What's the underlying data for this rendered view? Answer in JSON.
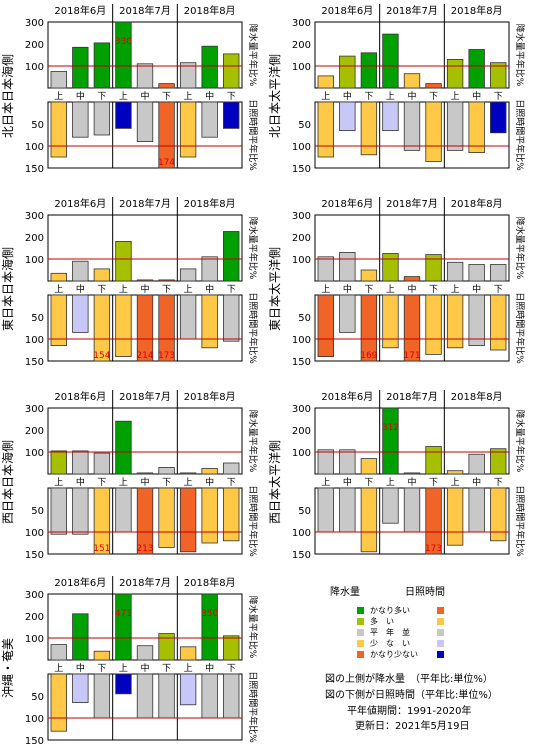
{
  "months": [
    "2018年6月",
    "2018年7月",
    "2018年8月"
  ],
  "dekads": [
    "上",
    "中",
    "下"
  ],
  "precip_axis_label": "降水量平年比%",
  "sun_axis_label": "日照時間平年比%",
  "precip_ticks": [
    100,
    200,
    300
  ],
  "sun_ticks": [
    50,
    100,
    150
  ],
  "colors": {
    "precip": {
      "much": "#00a000",
      "above": "#a6c000",
      "normal": "#c8c8c8",
      "below": "#ffc846",
      "much_below": "#f06428"
    },
    "sun": {
      "much": "#f06428",
      "above": "#ffc846",
      "normal": "#c8c8c8",
      "below": "#c8c8f8",
      "much_below": "#0000c0"
    },
    "reference_line": "#c00000"
  },
  "chart_data": [
    {
      "type": "bar",
      "region": "北日本日本海側",
      "categories": [
        "6月上",
        "6月中",
        "6月下",
        "7月上",
        "7月中",
        "7月下",
        "8月上",
        "8月中",
        "8月下"
      ],
      "precip": {
        "values": [
          75,
          185,
          205,
          330,
          110,
          20,
          115,
          190,
          155
        ],
        "class": [
          "normal",
          "much",
          "much",
          "much",
          "normal",
          "much_below",
          "normal",
          "much",
          "above"
        ],
        "ylim": [
          0,
          300
        ]
      },
      "sun": {
        "values": [
          125,
          80,
          75,
          60,
          90,
          174,
          125,
          80,
          60
        ],
        "class": [
          "above",
          "normal",
          "normal",
          "much_below",
          "normal",
          "much",
          "above",
          "normal",
          "much_below"
        ],
        "ylim": [
          0,
          150
        ],
        "inverted": true
      }
    },
    {
      "type": "bar",
      "region": "北日本太平洋側",
      "categories": [
        "6月上",
        "6月中",
        "6月下",
        "7月上",
        "7月中",
        "7月下",
        "8月上",
        "8月中",
        "8月下"
      ],
      "precip": {
        "values": [
          55,
          145,
          160,
          245,
          65,
          20,
          130,
          175,
          115
        ],
        "class": [
          "below",
          "above",
          "much",
          "much",
          "below",
          "much_below",
          "above",
          "much",
          "above"
        ],
        "ylim": [
          0,
          300
        ]
      },
      "sun": {
        "values": [
          125,
          65,
          120,
          65,
          110,
          135,
          110,
          115,
          70
        ],
        "class": [
          "above",
          "below",
          "above",
          "below",
          "normal",
          "above",
          "normal",
          "above",
          "much_below"
        ],
        "ylim": [
          0,
          150
        ],
        "inverted": true
      }
    },
    {
      "type": "bar",
      "region": "東日本日本海側",
      "categories": [
        "6月上",
        "6月中",
        "6月下",
        "7月上",
        "7月中",
        "7月下",
        "8月上",
        "8月中",
        "8月下"
      ],
      "precip": {
        "values": [
          35,
          90,
          55,
          180,
          5,
          5,
          55,
          110,
          225
        ],
        "class": [
          "below",
          "normal",
          "below",
          "above",
          "much_below",
          "much_below",
          "normal",
          "normal",
          "much"
        ],
        "ylim": [
          0,
          300
        ]
      },
      "sun": {
        "values": [
          115,
          85,
          154,
          140,
          214,
          173,
          100,
          120,
          105
        ],
        "class": [
          "above",
          "below",
          "above",
          "above",
          "much",
          "much",
          "normal",
          "above",
          "normal"
        ],
        "ylim": [
          0,
          150
        ],
        "inverted": true
      }
    },
    {
      "type": "bar",
      "region": "東日本太平洋側",
      "categories": [
        "6月上",
        "6月中",
        "6月下",
        "7月上",
        "7月中",
        "7月下",
        "8月上",
        "8月中",
        "8月下"
      ],
      "precip": {
        "values": [
          110,
          130,
          50,
          125,
          20,
          120,
          85,
          75,
          75
        ],
        "class": [
          "normal",
          "normal",
          "below",
          "above",
          "much_below",
          "above",
          "normal",
          "normal",
          "normal"
        ],
        "ylim": [
          0,
          300
        ]
      },
      "sun": {
        "values": [
          140,
          85,
          169,
          120,
          171,
          135,
          120,
          115,
          125
        ],
        "class": [
          "much",
          "normal",
          "much",
          "above",
          "much",
          "above",
          "above",
          "normal",
          "above"
        ],
        "ylim": [
          0,
          150
        ],
        "inverted": true
      }
    },
    {
      "type": "bar",
      "region": "西日本日本海側",
      "categories": [
        "6月上",
        "6月中",
        "6月下",
        "7月上",
        "7月中",
        "7月下",
        "8月上",
        "8月中",
        "8月下"
      ],
      "precip": {
        "values": [
          105,
          105,
          95,
          240,
          5,
          30,
          5,
          25,
          50
        ],
        "class": [
          "above",
          "normal",
          "normal",
          "much",
          "much_below",
          "normal",
          "much_below",
          "below",
          "normal"
        ],
        "ylim": [
          0,
          300
        ]
      },
      "sun": {
        "values": [
          105,
          105,
          151,
          100,
          213,
          135,
          145,
          125,
          120
        ],
        "class": [
          "normal",
          "normal",
          "above",
          "normal",
          "much",
          "above",
          "much",
          "above",
          "above"
        ],
        "ylim": [
          0,
          150
        ],
        "inverted": true
      }
    },
    {
      "type": "bar",
      "region": "西日本太平洋側",
      "categories": [
        "6月上",
        "6月中",
        "6月下",
        "7月上",
        "7月中",
        "7月下",
        "8月上",
        "8月中",
        "8月下"
      ],
      "precip": {
        "values": [
          110,
          110,
          70,
          312,
          5,
          125,
          15,
          90,
          115
        ],
        "class": [
          "normal",
          "normal",
          "below",
          "much",
          "much_below",
          "above",
          "below",
          "normal",
          "above"
        ],
        "ylim": [
          0,
          300
        ]
      },
      "sun": {
        "values": [
          100,
          100,
          145,
          80,
          100,
          173,
          130,
          100,
          120
        ],
        "class": [
          "normal",
          "normal",
          "above",
          "normal",
          "normal",
          "much",
          "above",
          "normal",
          "above"
        ],
        "ylim": [
          0,
          150
        ],
        "inverted": true
      }
    },
    {
      "type": "bar",
      "region": "沖縄・奄美",
      "categories": [
        "6月上",
        "6月中",
        "6月下",
        "7月上",
        "7月中",
        "7月下",
        "8月上",
        "8月中",
        "8月下"
      ],
      "precip": {
        "values": [
          70,
          210,
          40,
          471,
          65,
          120,
          60,
          350,
          110
        ],
        "class": [
          "normal",
          "much",
          "below",
          "much",
          "normal",
          "above",
          "below",
          "much",
          "above"
        ],
        "ylim": [
          0,
          300
        ]
      },
      "sun": {
        "values": [
          130,
          65,
          100,
          45,
          100,
          100,
          70,
          100,
          100
        ],
        "class": [
          "above",
          "below",
          "normal",
          "much_below",
          "normal",
          "normal",
          "below",
          "normal",
          "normal"
        ],
        "ylim": [
          0,
          150
        ],
        "inverted": true
      }
    }
  ],
  "legend": {
    "header_precip": "降水量",
    "header_sun": "日照時間",
    "rows": [
      {
        "label": "かなり多い",
        "precip": "#00a000",
        "sun": "#f06428"
      },
      {
        "label": "多　い",
        "precip": "#a6c000",
        "sun": "#ffc846"
      },
      {
        "label": "平　年　並",
        "precip": "#c8c8c8",
        "sun": "#c8c8c8"
      },
      {
        "label": "少　な　い",
        "precip": "#ffc846",
        "sun": "#c8c8f8"
      },
      {
        "label": "かなり少ない",
        "precip": "#f06428",
        "sun": "#0000c0"
      }
    ],
    "note1": "図の上側が降水量　（平年比:単位%）",
    "note2": "図の下側が日照時間（平年比:単位%）",
    "note3": "平年値期間：1991-2020年",
    "updated": "更新日：2021年5月19日"
  }
}
